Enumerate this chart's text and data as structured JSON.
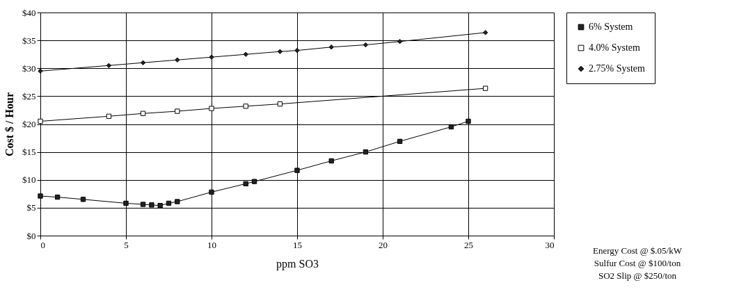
{
  "chart_data": {
    "type": "line",
    "xlabel": "ppm SO3",
    "ylabel": "Cost $ / Hour",
    "xlim": [
      0,
      30
    ],
    "xticks": [
      0,
      5,
      10,
      15,
      20,
      25,
      30
    ],
    "ylim": [
      0,
      40
    ],
    "yticks": [
      {
        "value": 0,
        "label": "$0"
      },
      {
        "value": 5,
        "label": "$5"
      },
      {
        "value": 10,
        "label": "$10"
      },
      {
        "value": 15,
        "label": "$15"
      },
      {
        "value": 20,
        "label": "$20"
      },
      {
        "value": 25,
        "label": "$25"
      },
      {
        "value": 30,
        "label": "$30"
      },
      {
        "value": 35,
        "label": "$35"
      },
      {
        "value": 40,
        "label": "$40"
      }
    ],
    "grid": true,
    "legend": "right",
    "line_style": "solid",
    "series": [
      {
        "name": "6% System",
        "color": "#222222",
        "marker": "square",
        "x": [
          0,
          1,
          2.5,
          5,
          6,
          6.5,
          7,
          7.5,
          8,
          10,
          12,
          12.5,
          15,
          17,
          19,
          21,
          24,
          25
        ],
        "values": [
          7.1,
          6.9,
          6.5,
          5.8,
          5.6,
          5.5,
          5.4,
          5.8,
          6.1,
          7.8,
          9.3,
          9.7,
          11.7,
          13.4,
          15.0,
          16.9,
          19.5,
          20.5
        ]
      },
      {
        "name": "4.0% System",
        "color": "#ffffff",
        "marker": "square",
        "x": [
          0,
          4,
          6,
          8,
          10,
          12,
          14,
          26
        ],
        "values": [
          20.5,
          21.4,
          21.9,
          22.3,
          22.8,
          23.2,
          23.6,
          26.4
        ]
      },
      {
        "name": "2.75% System",
        "color": "#222222",
        "marker": "diamond",
        "x": [
          0,
          4,
          6,
          8,
          10,
          12,
          14,
          15,
          17,
          19,
          21,
          26
        ],
        "values": [
          29.5,
          30.5,
          31.0,
          31.5,
          32.0,
          32.5,
          33.0,
          33.2,
          33.8,
          34.2,
          34.8,
          36.4
        ]
      }
    ],
    "annotations": [
      "Energy Cost @ $.05/kW",
      "Sulfur Cost @ $100/ton",
      "SO2 Slip @ $250/ton"
    ]
  }
}
